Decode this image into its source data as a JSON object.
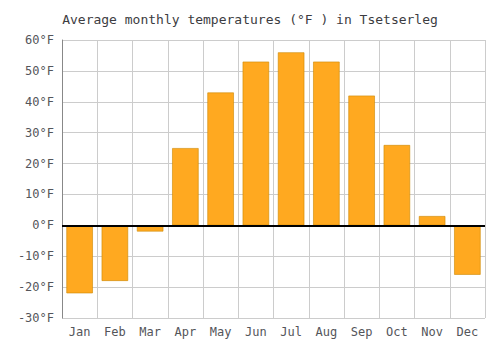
{
  "chart_data": {
    "type": "bar",
    "title": "Average monthly temperatures (°F ) in Tsetserleg",
    "categories": [
      "Jan",
      "Feb",
      "Mar",
      "Apr",
      "May",
      "Jun",
      "Jul",
      "Aug",
      "Sep",
      "Oct",
      "Nov",
      "Dec"
    ],
    "values": [
      -22,
      -18,
      -2,
      25,
      43,
      53,
      56,
      53,
      42,
      26,
      3,
      -16
    ],
    "color": "#FFA920",
    "ylim": [
      -30,
      60
    ],
    "yticks": [
      {
        "value": -30,
        "label": "-30°F"
      },
      {
        "value": -20,
        "label": "-20°F"
      },
      {
        "value": -10,
        "label": "-10°F"
      },
      {
        "value": 0,
        "label": "0°F"
      },
      {
        "value": 10,
        "label": "10°F"
      },
      {
        "value": 20,
        "label": "20°F"
      },
      {
        "value": 30,
        "label": "30°F"
      },
      {
        "value": 40,
        "label": "40°F"
      },
      {
        "value": 50,
        "label": "50°F"
      },
      {
        "value": 60,
        "label": "60°F"
      }
    ],
    "grid": true
  }
}
